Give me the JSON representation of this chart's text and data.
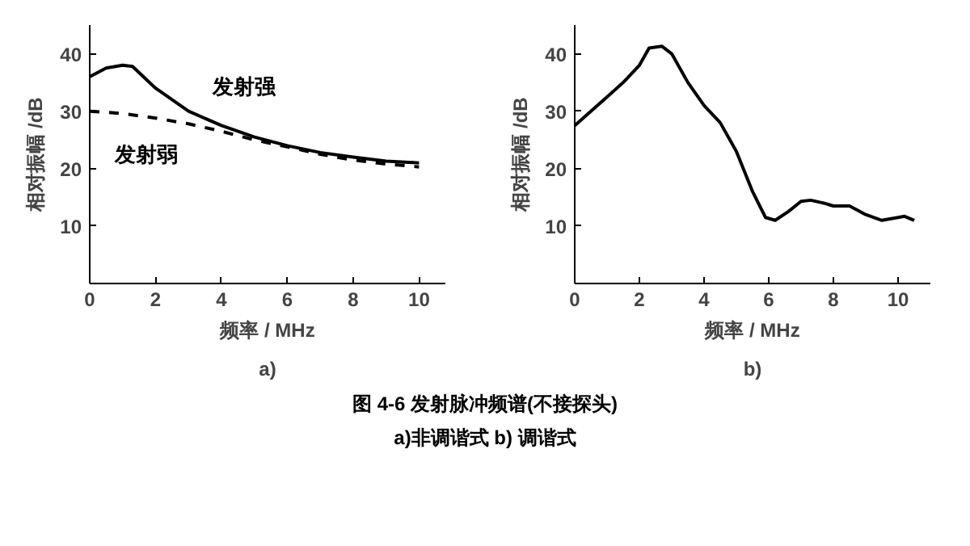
{
  "chart_data": [
    {
      "type": "line",
      "xlabel": "频率 / MHz",
      "ylabel": "相对振幅 /dB",
      "xlim": [
        0,
        10.8
      ],
      "ylim": [
        0,
        45
      ],
      "xticks": [
        0,
        2,
        4,
        6,
        8,
        10
      ],
      "yticks": [
        10,
        20,
        30,
        40
      ],
      "grid": false,
      "marker": "none",
      "annotations": [
        "a)",
        "图 4-6   发射脉冲频谱(不接探头)",
        "a)非调谐式   b) 调谐式"
      ],
      "series": [
        {
          "name": "发射强",
          "color": "#000000",
          "line_style": "solid",
          "x": [
            0,
            0.5,
            1,
            1.3,
            2,
            3,
            4,
            5,
            6,
            7,
            8,
            9,
            10
          ],
          "values": [
            36,
            37.5,
            38,
            37.8,
            34,
            30,
            27.5,
            25.5,
            24,
            22.8,
            22,
            21.3,
            21
          ]
        },
        {
          "name": "发射弱",
          "color": "#000000",
          "line_style": "dashed",
          "x": [
            0,
            1,
            2,
            3,
            4,
            5,
            6,
            7,
            8,
            9,
            10
          ],
          "values": [
            30,
            29.6,
            28.8,
            27.8,
            26.5,
            25,
            23.8,
            22.5,
            21.5,
            20.8,
            20.3
          ]
        }
      ]
    },
    {
      "type": "line",
      "xlabel": "频率 / MHz",
      "ylabel": "相对振幅 /dB",
      "xlim": [
        0,
        11
      ],
      "ylim": [
        0,
        45
      ],
      "xticks": [
        0,
        2,
        4,
        6,
        8,
        10
      ],
      "yticks": [
        10,
        20,
        30,
        40
      ],
      "grid": false,
      "marker": "none",
      "annotations": [
        "b)"
      ],
      "series": [
        {
          "color": "#000000",
          "line_style": "solid",
          "x": [
            0,
            0.5,
            1,
            1.5,
            2,
            2.3,
            2.7,
            3,
            3.5,
            4,
            4.5,
            5,
            5.5,
            5.9,
            6.2,
            6.6,
            7,
            7.3,
            7.7,
            8,
            8.5,
            9,
            9.5,
            10,
            10.2,
            10.5
          ],
          "values": [
            27.5,
            30,
            32.5,
            35,
            38,
            41,
            41.3,
            40,
            35,
            31,
            28,
            23,
            16,
            11.5,
            11,
            12.5,
            14.3,
            14.5,
            14,
            13.5,
            13.5,
            12,
            11,
            11.5,
            11.7,
            11
          ]
        }
      ]
    }
  ]
}
